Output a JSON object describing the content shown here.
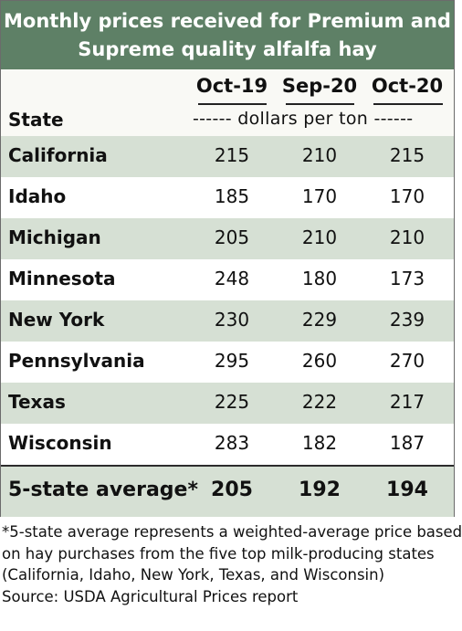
{
  "chart_data": {
    "type": "table",
    "title": "Monthly prices received for Premium and Supreme quality alfalfa hay",
    "title_lines": [
      "Monthly prices received for Premium and",
      "Supreme quality alfalfa hay"
    ],
    "row_header": "State",
    "units": "------ dollars per ton ------",
    "columns": [
      "Oct-19",
      "Sep-20",
      "Oct-20"
    ],
    "rows": [
      {
        "state": "California",
        "values": [
          215,
          210,
          215
        ]
      },
      {
        "state": "Idaho",
        "values": [
          185,
          170,
          170
        ]
      },
      {
        "state": "Michigan",
        "values": [
          205,
          210,
          210
        ]
      },
      {
        "state": "Minnesota",
        "values": [
          248,
          180,
          173
        ]
      },
      {
        "state": "New York",
        "values": [
          230,
          229,
          239
        ]
      },
      {
        "state": "Pennsylvania",
        "values": [
          295,
          260,
          270
        ]
      },
      {
        "state": "Texas",
        "values": [
          225,
          222,
          217
        ]
      },
      {
        "state": "Wisconsin",
        "values": [
          283,
          182,
          187
        ]
      }
    ],
    "summary": {
      "label": "5-state average*",
      "values": [
        205,
        192,
        194
      ]
    }
  },
  "footnote": [
    "*5-state average represents  a weighted-average price based",
    "on hay purchases from the five top milk-producing states",
    "(California, Idaho, New York, Texas, and Wisconsin)",
    "Source: USDA Agricultural Prices report"
  ],
  "colors": {
    "header_bg": "#5e8066",
    "row_shade": "#d6e0d4",
    "header_row_bg": "#f9f9f5"
  }
}
